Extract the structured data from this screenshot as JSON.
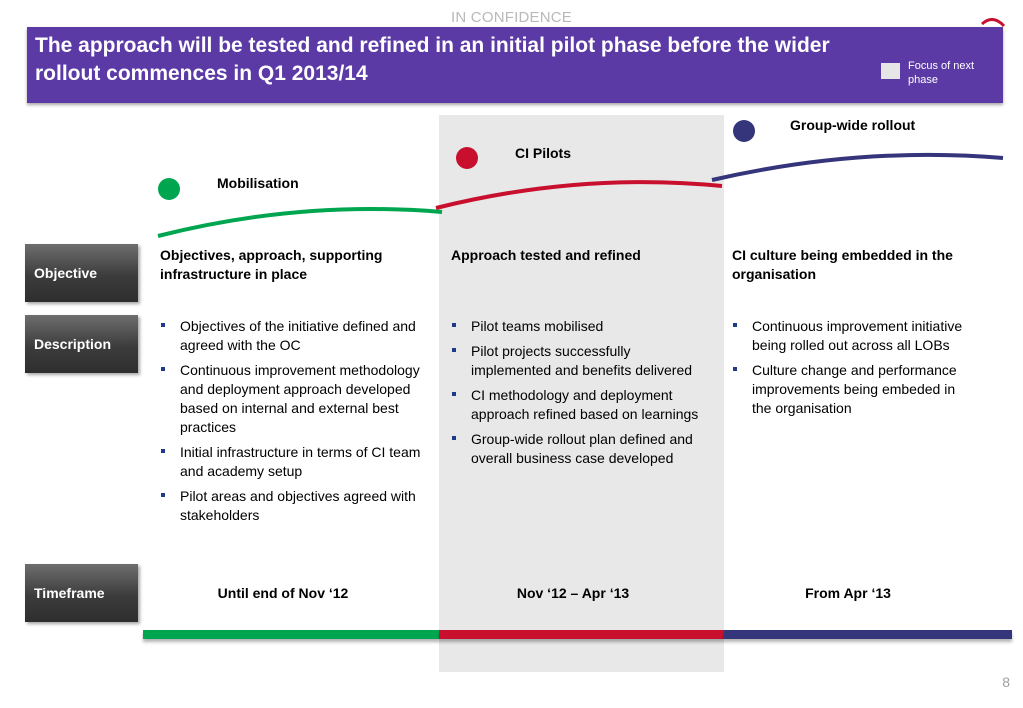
{
  "confidentiality": "IN CONFIDENCE",
  "header": {
    "title": "The approach will be tested and refined in an initial pilot phase before the wider rollout commences in Q1 2013/14",
    "legend_label": "Focus of next phase",
    "color": "#5b3aa6"
  },
  "phases": [
    {
      "name": "Mobilisation",
      "color": "#00a64f",
      "objective": "Objectives, approach, supporting infrastructure in place",
      "description": [
        "Objectives of the initiative defined and agreed with the OC",
        "Continuous improvement methodology and deployment approach developed based on internal and external best practices",
        "Initial infrastructure in terms of CI team and academy setup",
        "Pilot areas and objectives agreed with stakeholders"
      ],
      "timeframe": "Until end of Nov ‘12"
    },
    {
      "name": "CI Pilots",
      "color": "#c8102e",
      "objective": "Approach tested and refined",
      "description": [
        "Pilot teams mobilised",
        "Pilot projects successfully implemented and benefits delivered",
        "CI methodology and deployment approach refined based on learnings",
        "Group-wide rollout plan defined and overall business case developed"
      ],
      "timeframe": "Nov ‘12 – Apr ‘13"
    },
    {
      "name": "Group-wide rollout",
      "color": "#34357a",
      "objective": "CI culture being embedded in the organisation",
      "description": [
        "Continuous improvement initiative being rolled out across all LOBs",
        "Culture change and performance improvements being embeded in the organisation"
      ],
      "timeframe": "From Apr ‘13"
    }
  ],
  "rows": {
    "objective": "Objective",
    "description": "Description",
    "timeframe": "Timeframe"
  },
  "page_number": "8"
}
